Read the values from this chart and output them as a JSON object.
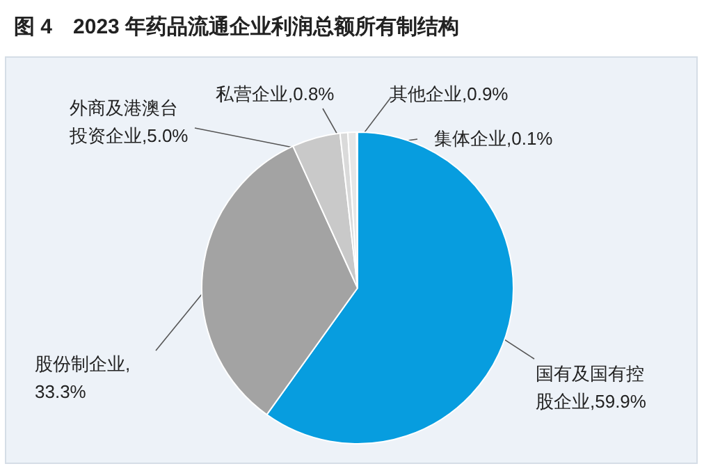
{
  "chart_data": {
    "type": "pie",
    "title": "图 4　2023 年药品流通企业利润总额所有制结构",
    "categories": [
      "国有及国有控股企业",
      "股份制企业",
      "外商及港澳台投资企业",
      "私营企业",
      "其他企业",
      "集体企业"
    ],
    "values": [
      59.9,
      33.3,
      5.0,
      0.8,
      0.9,
      0.1
    ],
    "value_labels": [
      ",59.9%",
      ",33.3%",
      ",5.0%",
      ",0.8%",
      ",0.9%",
      ",0.1%"
    ],
    "colors": [
      "#079ddf",
      "#a3a3a3",
      "#c9c9c9",
      "#dadada",
      "#e6e6e6",
      "#bdbdbd"
    ]
  }
}
